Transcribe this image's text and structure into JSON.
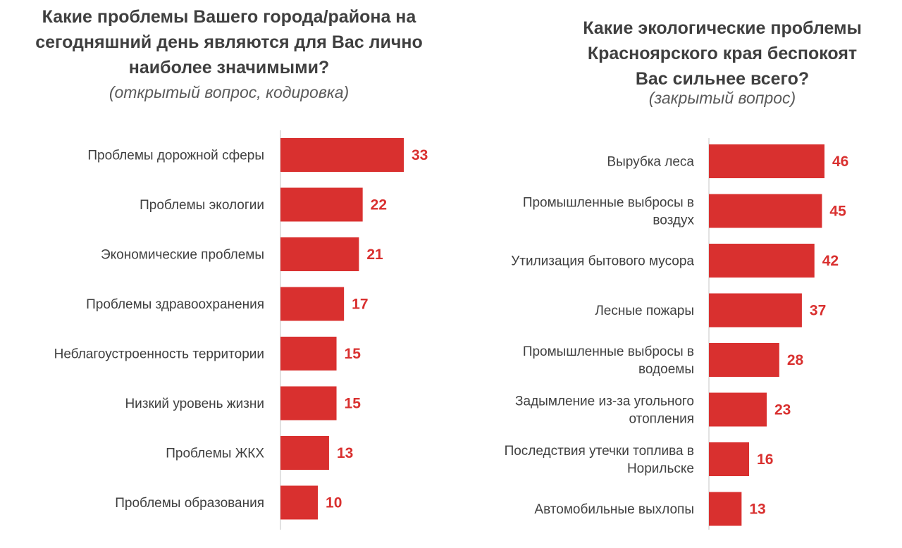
{
  "chart_data": [
    {
      "type": "bar",
      "orientation": "horizontal",
      "title": "Какие проблемы Вашего города/района на сегодняшний день являются для Вас лично наиболее значимыми?",
      "title_lines": [
        "Какие проблемы Вашего города/района на",
        "сегодняшний день являются для Вас лично",
        "наиболее значимыми?"
      ],
      "subtitle": "(открытый вопрос, кодировка)",
      "categories": [
        "Проблемы дорожной сферы",
        "Проблемы экологии",
        "Экономические проблемы",
        "Проблемы здравоохранения",
        "Неблагоустроенность территории",
        "Низкий уровень жизни",
        "Проблемы ЖКХ",
        "Проблемы образования"
      ],
      "category_lines": [
        [
          "Проблемы дорожной сферы"
        ],
        [
          "Проблемы экологии"
        ],
        [
          "Экономические проблемы"
        ],
        [
          "Проблемы здравоохранения"
        ],
        [
          "Неблагоустроенность территории"
        ],
        [
          "Низкий уровень жизни"
        ],
        [
          "Проблемы ЖКХ"
        ],
        [
          "Проблемы образования"
        ]
      ],
      "values": [
        33,
        22,
        21,
        17,
        15,
        15,
        13,
        10
      ],
      "xlim": [
        0,
        33
      ],
      "grid": false,
      "legend": "none",
      "bar_color": "#d9302f"
    },
    {
      "type": "bar",
      "orientation": "horizontal",
      "title": "Какие экологические проблемы Красноярского края беспокоят Вас сильнее всего?",
      "title_lines": [
        "Какие экологические проблемы",
        "Красноярского края беспокоят",
        "Вас сильнее всего?"
      ],
      "subtitle": "(закрытый вопрос)",
      "categories": [
        "Вырубка леса",
        "Промышленные выбросы в воздух",
        "Утилизация бытового мусора",
        "Лесные пожары",
        "Промышленные выбросы в водоемы",
        "Задымление из-за угольного отопления",
        "Последствия утечки топлива в Норильске",
        "Автомобильные выхлопы"
      ],
      "category_lines": [
        [
          "Вырубка леса"
        ],
        [
          "Промышленные выбросы в",
          "воздух"
        ],
        [
          "Утилизация бытового мусора"
        ],
        [
          "Лесные пожары"
        ],
        [
          "Промышленные выбросы в",
          "водоемы"
        ],
        [
          "Задымление из-за угольного",
          "отопления"
        ],
        [
          "Последствия утечки топлива в",
          "Норильске"
        ],
        [
          "Автомобильные выхлопы"
        ]
      ],
      "values": [
        46,
        45,
        42,
        37,
        28,
        23,
        16,
        13
      ],
      "xlim": [
        0,
        46
      ],
      "grid": false,
      "legend": "none",
      "bar_color": "#d9302f"
    }
  ]
}
